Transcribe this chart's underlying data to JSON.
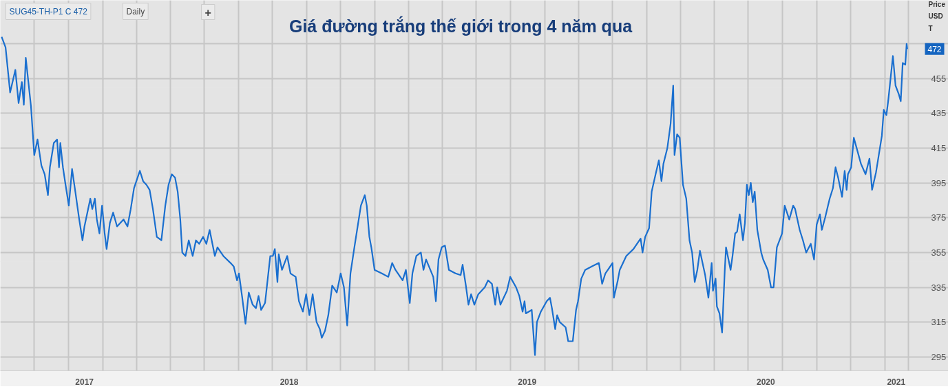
{
  "chart_data": {
    "type": "line",
    "title": "Giá đường trắng thế giới trong 4 năm qua",
    "ylabel": "Price USD T",
    "annotations": [
      "SUG45-TH-P1 C 472",
      "Daily",
      "+",
      {
        "text": "472",
        "y": 472
      }
    ],
    "series": [
      {
        "color": "#1a6fcf",
        "x": [
          "2017-04-17",
          "2017-04-23",
          "2017-04-30",
          "2017-05-08",
          "2017-05-13",
          "2017-05-18",
          "2017-05-21",
          "2017-05-24",
          "2017-05-28",
          "2017-06-01",
          "2017-06-06",
          "2017-06-11",
          "2017-06-17",
          "2017-06-22",
          "2017-06-27",
          "2017-06-30",
          "2017-07-06",
          "2017-07-11",
          "2017-07-14",
          "2017-07-16",
          "2017-07-20",
          "2017-07-24",
          "2017-07-29",
          "2017-08-03",
          "2017-08-08",
          "2017-08-14",
          "2017-08-19",
          "2017-08-22",
          "2017-08-31",
          "2017-09-03",
          "2017-09-07",
          "2017-09-10",
          "2017-09-14",
          "2017-09-18",
          "2017-09-22",
          "2017-09-25",
          "2017-09-30",
          "2017-10-05",
          "2017-10-11",
          "2017-10-21",
          "2017-10-27",
          "2017-11-01",
          "2017-11-06",
          "2017-11-15",
          "2017-11-20",
          "2017-11-25",
          "2017-11-30",
          "2017-12-05",
          "2017-12-11",
          "2017-12-18",
          "2017-12-24",
          "2017-12-29",
          "2018-01-03",
          "2018-01-08",
          "2018-01-12",
          "2018-01-16",
          "2018-01-19",
          "2018-01-24",
          "2018-01-29",
          "2018-02-04",
          "2018-02-09",
          "2018-02-14",
          "2018-02-20",
          "2018-02-25",
          "2018-03-02",
          "2018-03-10",
          "2018-03-14",
          "2018-03-23",
          "2018-04-03",
          "2018-04-08",
          "2018-04-13",
          "2018-04-16",
          "2018-04-21",
          "2018-04-26",
          "2018-05-01",
          "2018-05-07",
          "2018-05-12",
          "2018-05-16",
          "2018-05-20",
          "2018-05-26",
          "2018-05-31",
          "2018-06-03",
          "2018-06-07",
          "2018-06-10",
          "2018-06-14",
          "2018-06-16",
          "2018-06-21",
          "2018-06-29",
          "2018-07-04",
          "2018-07-12",
          "2018-07-17",
          "2018-07-23",
          "2018-07-28",
          "2018-08-02",
          "2018-08-07",
          "2018-08-13",
          "2018-08-18",
          "2018-08-21",
          "2018-08-26",
          "2018-08-31",
          "2018-09-06",
          "2018-09-13",
          "2018-09-19",
          "2018-09-24",
          "2018-09-29",
          "2018-10-04",
          "2018-10-10",
          "2018-10-15",
          "2018-10-20",
          "2018-10-26",
          "2018-10-29",
          "2018-11-02",
          "2018-11-05",
          "2018-11-10",
          "2018-11-21",
          "2018-12-01",
          "2018-12-07",
          "2018-12-12",
          "2018-12-23",
          "2018-12-28",
          "2019-01-03",
          "2019-01-07",
          "2019-01-13",
          "2019-01-20",
          "2019-01-24",
          "2019-01-28",
          "2019-02-08",
          "2019-02-12",
          "2019-02-16",
          "2019-02-21",
          "2019-02-26",
          "2019-03-04",
          "2019-03-14",
          "2019-03-22",
          "2019-03-25",
          "2019-03-30",
          "2019-04-03",
          "2019-04-07",
          "2019-04-12",
          "2019-04-18",
          "2019-04-28",
          "2019-05-03",
          "2019-05-09",
          "2019-05-14",
          "2019-05-17",
          "2019-05-22",
          "2019-06-01",
          "2019-06-06",
          "2019-06-15",
          "2019-06-20",
          "2019-06-25",
          "2019-06-28",
          "2019-06-30",
          "2019-07-09",
          "2019-07-14",
          "2019-07-17",
          "2019-07-23",
          "2019-08-01",
          "2019-08-06",
          "2019-08-09",
          "2019-08-14",
          "2019-08-17",
          "2019-08-21",
          "2019-08-30",
          "2019-09-03",
          "2019-09-10",
          "2019-09-15",
          "2019-09-18",
          "2019-09-23",
          "2019-09-29",
          "2019-10-09",
          "2019-10-20",
          "2019-10-25",
          "2019-10-30",
          "2019-11-10",
          "2019-11-12",
          "2019-11-18",
          "2019-11-21",
          "2019-12-01",
          "2019-12-12",
          "2019-12-23",
          "2019-12-26",
          "2019-12-30",
          "2020-01-05",
          "2020-01-09",
          "2020-01-15",
          "2020-01-20",
          "2020-01-24",
          "2020-01-27",
          "2020-02-02",
          "2020-02-07",
          "2020-02-11",
          "2020-02-13",
          "2020-02-17",
          "2020-02-21",
          "2020-02-26",
          "2020-03-02",
          "2020-03-07",
          "2020-03-11",
          "2020-03-15",
          "2020-03-19",
          "2020-03-23",
          "2020-03-31",
          "2020-04-05",
          "2020-04-10",
          "2020-04-12",
          "2020-04-16",
          "2020-04-18",
          "2020-04-22",
          "2020-04-26",
          "2020-04-30",
          "2020-05-02",
          "2020-05-09",
          "2020-05-12",
          "2020-05-16",
          "2020-05-19",
          "2020-05-23",
          "2020-05-28",
          "2020-05-31",
          "2020-06-03",
          "2020-06-06",
          "2020-06-09",
          "2020-06-12",
          "2020-06-15",
          "2020-06-19",
          "2020-06-25",
          "2020-06-28",
          "2020-07-05",
          "2020-07-10",
          "2020-07-14",
          "2020-07-19",
          "2020-07-27",
          "2020-07-31",
          "2020-08-07",
          "2020-08-13",
          "2020-08-16",
          "2020-08-23",
          "2020-08-28",
          "2020-09-02",
          "2020-09-09",
          "2020-09-14",
          "2020-09-18",
          "2020-09-23",
          "2020-09-26",
          "2020-10-01",
          "2020-10-08",
          "2020-10-13",
          "2020-10-17",
          "2020-10-21",
          "2020-10-27",
          "2020-10-31",
          "2020-11-03",
          "2020-11-05",
          "2020-11-10",
          "2020-11-14",
          "2020-11-25",
          "2020-12-02",
          "2020-12-08",
          "2020-12-12",
          "2020-12-18",
          "2020-12-21",
          "2020-12-27",
          "2020-12-30",
          "2021-01-03",
          "2021-01-06",
          "2021-01-13",
          "2021-01-17",
          "2021-01-22",
          "2021-01-25",
          "2021-01-28",
          "2021-02-01",
          "2021-02-03",
          "2021-02-04"
        ],
        "values": [
          479,
          473,
          447,
          460,
          441,
          453,
          440,
          467,
          453,
          439,
          411,
          420,
          405,
          400,
          388,
          404,
          418,
          420,
          404,
          418,
          404,
          394,
          382,
          403,
          390,
          374,
          362,
          370,
          386,
          380,
          386,
          374,
          366,
          382,
          366,
          357,
          372,
          378,
          370,
          374,
          370,
          380,
          392,
          402,
          396,
          394,
          391,
          380,
          364,
          362,
          382,
          394,
          400,
          398,
          390,
          374,
          355,
          353,
          362,
          353,
          362,
          360,
          364,
          360,
          368,
          353,
          358,
          353,
          349,
          347,
          339,
          343,
          329,
          314,
          332,
          325,
          323,
          330,
          322,
          326,
          343,
          353,
          353,
          357,
          338,
          354,
          345,
          353,
          343,
          341,
          327,
          321,
          331,
          319,
          331,
          315,
          311,
          306,
          310,
          319,
          336,
          332,
          343,
          335,
          313,
          343,
          358,
          370,
          382,
          388,
          382,
          364,
          358,
          345,
          343,
          341,
          349,
          345,
          339,
          345,
          326,
          343,
          353,
          355,
          345,
          351,
          341,
          327,
          351,
          358,
          359,
          345,
          343,
          342,
          348,
          336,
          325,
          331,
          325,
          331,
          335,
          339,
          337,
          325,
          335,
          325,
          333,
          341,
          335,
          330,
          321,
          327,
          320,
          322,
          296,
          315,
          321,
          327,
          329,
          323,
          311,
          319,
          315,
          312,
          304,
          304,
          322,
          327,
          340,
          345,
          347,
          349,
          337,
          343,
          349,
          329,
          339,
          345,
          353,
          357,
          363,
          355,
          364,
          369,
          390,
          400,
          408,
          396,
          406,
          415,
          429,
          451,
          411,
          423,
          421,
          394,
          386,
          362,
          355,
          338,
          345,
          356,
          342,
          329,
          349,
          333,
          340,
          324,
          320,
          309,
          344,
          358,
          345,
          353,
          366,
          367,
          377,
          362,
          372,
          394,
          388,
          395,
          384,
          390,
          368,
          355,
          351,
          345,
          335,
          335,
          358,
          366,
          382,
          374,
          382,
          380,
          368,
          362,
          355,
          360,
          351,
          371,
          377,
          368,
          375,
          386,
          392,
          404,
          398,
          387,
          402,
          391,
          400,
          404,
          421,
          406,
          400,
          409,
          391,
          401,
          408,
          422,
          437,
          434,
          443,
          468,
          451,
          446,
          442,
          464,
          463,
          475,
          472
        ]
      }
    ],
    "xlim": [
      "2017-04-15",
      "2021-04-08"
    ],
    "xticks": [
      {
        "value": "2017-08-22",
        "label": "2017"
      },
      {
        "value": "2018-07-02",
        "label": "2018"
      },
      {
        "value": "2019-07-02",
        "label": "2019"
      },
      {
        "value": "2020-07-02",
        "label": "2020"
      },
      {
        "value": "2021-01-18",
        "label": "2021"
      },
      {
        "value": "2017-06-06",
        "label": null
      },
      {
        "value": "2017-07-29",
        "label": null
      },
      {
        "value": "2017-09-19",
        "label": null
      },
      {
        "value": "2017-11-10",
        "label": null
      },
      {
        "value": "2018-01-01",
        "label": null
      },
      {
        "value": "2018-02-22",
        "label": null
      },
      {
        "value": "2018-04-15",
        "label": null
      },
      {
        "value": "2018-06-06",
        "label": null
      },
      {
        "value": "2018-07-29",
        "label": null
      },
      {
        "value": "2018-09-19",
        "label": null
      },
      {
        "value": "2018-11-10",
        "label": null
      },
      {
        "value": "2019-01-01",
        "label": null
      },
      {
        "value": "2019-02-22",
        "label": null
      },
      {
        "value": "2019-04-15",
        "label": null
      },
      {
        "value": "2019-06-06",
        "label": null
      },
      {
        "value": "2019-07-29",
        "label": null
      },
      {
        "value": "2019-09-19",
        "label": null
      },
      {
        "value": "2019-11-10",
        "label": null
      },
      {
        "value": "2020-01-01",
        "label": null
      },
      {
        "value": "2020-02-22",
        "label": null
      },
      {
        "value": "2020-04-14",
        "label": null
      },
      {
        "value": "2020-06-05",
        "label": null
      },
      {
        "value": "2020-07-28",
        "label": null
      },
      {
        "value": "2020-09-18",
        "label": null
      },
      {
        "value": "2020-11-09",
        "label": null
      },
      {
        "value": "2021-01-01",
        "label": null
      },
      {
        "value": "2021-02-06",
        "label": null
      }
    ],
    "ylim": [
      287,
      500
    ],
    "yticks": [
      295,
      315,
      335,
      355,
      375,
      395,
      415,
      435,
      455,
      {
        "value": 475,
        "label": null
      }
    ],
    "grid": true,
    "marker": "none",
    "line_style": "solid"
  }
}
